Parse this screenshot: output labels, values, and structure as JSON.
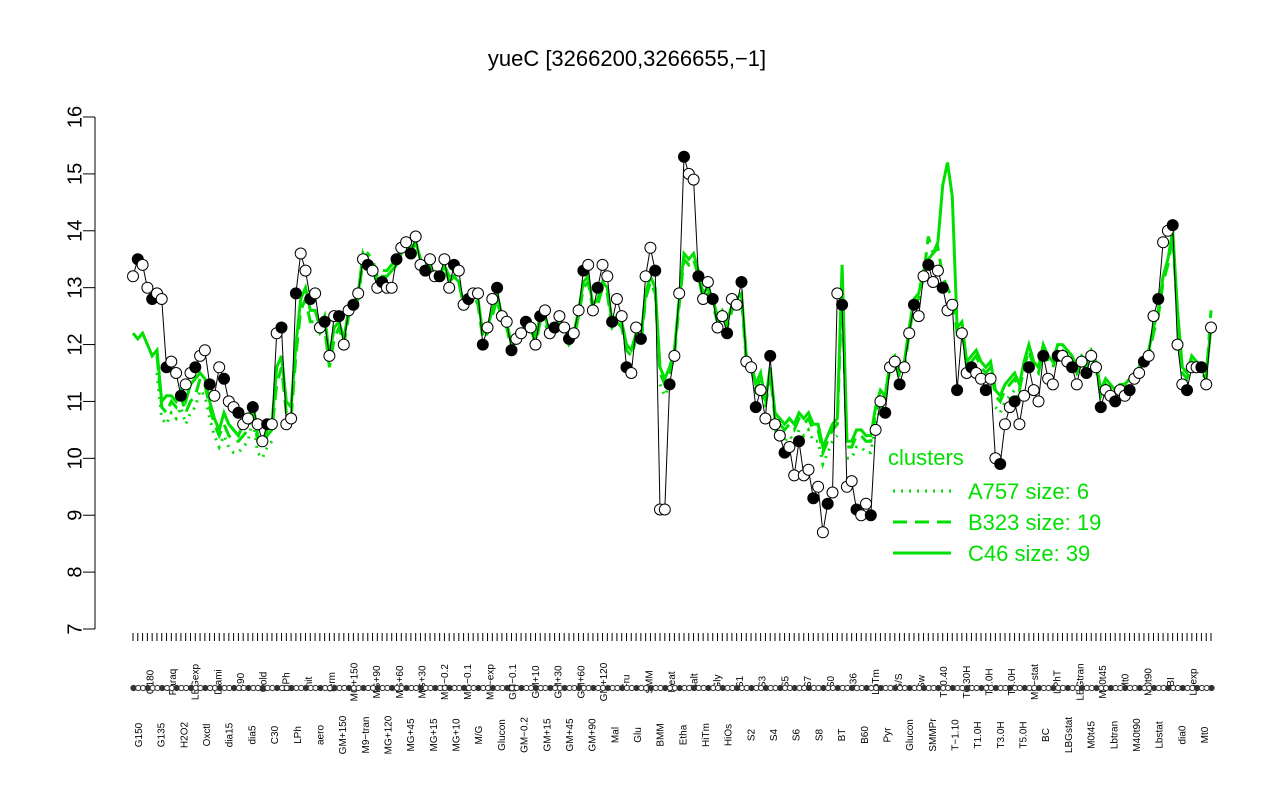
{
  "chart_data": {
    "type": "line",
    "title": "yueC [3266200,3266655,−1]",
    "xlabel": "",
    "ylabel": "",
    "ylim": [
      7,
      16
    ],
    "yticks": [
      7,
      8,
      9,
      10,
      11,
      12,
      13,
      14,
      15,
      16
    ],
    "grid": false,
    "legend_position": "bottom-right",
    "legend_title": "clusters",
    "legend": [
      {
        "label": "A757 size: 6",
        "style": "dotted"
      },
      {
        "label": "B323 size: 19",
        "style": "dashed"
      },
      {
        "label": "C46 size: 39",
        "style": "solid"
      }
    ],
    "xtick_labels": [
      "G150",
      "G180",
      "G135",
      "Paraq",
      "H2O2",
      "LBGexp",
      "Oxctl",
      "Diami",
      "dia15",
      "C90",
      "dia5",
      "Cold",
      "C30",
      "HPh",
      "LPh",
      "nit",
      "aero",
      "ferm",
      "GM+150",
      "MG+150",
      "M9−tran",
      "MG+90",
      "MG+120",
      "MG+60",
      "MG+45",
      "MG+30",
      "MG+15",
      "MG−0.2",
      "MG+10",
      "MG−0.1",
      "M/G",
      "M9−exp",
      "Glucon",
      "GM−0.1",
      "GM−0.2",
      "GM+10",
      "GM+15",
      "GM+30",
      "GM+45",
      "GM+60",
      "GM+90",
      "GM+120",
      "Mal",
      "Fru",
      "Glu",
      "SMM",
      "BMM",
      "Heat",
      "Etha",
      "Salt",
      "HiTm",
      "Gly",
      "HiOs",
      "S1",
      "S2",
      "S3",
      "S4",
      "S5",
      "S6",
      "S7",
      "S8",
      "S0",
      "BT",
      "B36",
      "B60",
      "LoTm",
      "Pyr",
      "G/S",
      "Glucon",
      "Sw",
      "SMMPr",
      "T−0.40",
      "T−1.10",
      "T0.30H",
      "T1.0H",
      "T2.0H",
      "T3.0H",
      "T4.0H",
      "T5.0H",
      "M9−stat",
      "BC",
      "LPhT",
      "LBGstat",
      "LBGtran",
      "M0t45",
      "M40t45",
      "Lbtran",
      "Mt0",
      "M40t90",
      "M0t90",
      "Lbstat",
      "BI",
      "dia0",
      "Lbexp",
      "Mt0"
    ],
    "series": [
      {
        "style": "points",
        "values": [
          13.2,
          13.5,
          13.4,
          13.0,
          12.8,
          12.9,
          12.8,
          11.6,
          11.7,
          11.5,
          11.1,
          11.3,
          11.5,
          11.6,
          11.8,
          11.9,
          11.3,
          11.1,
          11.6,
          11.4,
          11.0,
          10.9,
          10.8,
          10.6,
          10.7,
          10.9,
          10.6,
          10.3,
          10.6,
          10.6,
          12.2,
          12.3,
          10.6,
          10.7,
          12.9,
          13.6,
          13.3,
          12.8,
          12.9,
          12.3,
          12.4,
          11.8,
          12.5,
          12.5,
          12.0,
          12.6,
          12.7,
          12.9,
          13.5,
          13.4,
          13.3,
          13.0,
          13.1,
          13.0,
          13.0,
          13.5,
          13.7,
          13.8,
          13.6,
          13.9,
          13.4,
          13.3,
          13.5,
          13.2,
          13.2,
          13.5,
          13.0,
          13.4,
          13.3,
          12.7,
          12.8,
          12.9,
          12.9,
          12.0,
          12.3,
          12.8,
          13.0,
          12.5,
          12.4,
          11.9,
          12.1,
          12.2,
          12.4,
          12.3,
          12.0,
          12.5,
          12.6,
          12.2,
          12.3,
          12.5,
          12.3,
          12.1,
          12.2,
          12.6,
          13.3,
          13.4,
          12.6,
          13.0,
          13.4,
          13.2,
          12.4,
          12.8,
          12.5,
          11.6,
          11.5,
          12.3,
          12.1,
          13.2,
          13.7,
          13.3,
          9.1,
          9.1,
          11.3,
          11.8,
          12.9,
          15.3,
          15.0,
          14.9,
          13.2,
          12.8,
          13.1,
          12.8,
          12.3,
          12.5,
          12.2,
          12.8,
          12.7,
          13.1,
          11.7,
          11.6,
          10.9,
          11.2,
          10.7,
          11.8,
          10.6,
          10.4,
          10.1,
          10.2,
          9.7,
          10.3,
          9.7,
          9.8,
          9.3,
          9.5,
          8.7,
          9.2,
          9.4,
          12.9,
          12.7,
          9.5,
          9.6,
          9.1,
          9.0,
          9.2,
          9.0,
          10.5,
          11.0,
          10.8,
          11.6,
          11.7,
          11.3,
          11.6,
          12.2,
          12.7,
          12.5,
          13.2,
          13.4,
          13.1,
          13.3,
          13.0,
          12.6,
          12.7,
          11.2,
          12.2,
          11.5,
          11.6,
          11.5,
          11.4,
          11.2,
          11.4,
          10.0,
          9.9,
          10.6,
          10.9,
          11.0,
          10.6,
          11.1,
          11.6,
          11.2,
          11.0,
          11.8,
          11.4,
          11.3,
          11.8,
          11.8,
          11.7,
          11.6,
          11.3,
          11.7,
          11.5,
          11.8,
          11.6,
          10.9,
          11.2,
          11.1,
          11.0,
          11.2,
          11.1,
          11.2,
          11.4,
          11.5,
          11.7,
          11.8,
          12.5,
          12.8,
          13.8,
          14.0,
          14.1,
          12.0,
          11.3,
          11.2,
          11.6,
          11.6,
          11.6,
          11.3,
          12.3
        ]
      },
      {
        "name": "C46 size: 39",
        "style": "solid",
        "values": [
          12.2,
          12.1,
          12.2,
          12.0,
          11.8,
          11.9,
          11.0,
          11.1,
          11.1,
          11.0,
          11.2,
          11.0,
          11.3,
          11.4,
          11.5,
          11.4,
          11.0,
          10.7,
          10.5,
          10.8,
          10.6,
          10.5,
          10.4,
          10.6,
          10.7,
          11.0,
          10.4,
          10.3,
          10.5,
          10.6,
          11.6,
          11.8,
          11.0,
          10.9,
          12.0,
          12.8,
          13.0,
          12.6,
          12.6,
          12.3,
          12.5,
          11.8,
          12.3,
          12.4,
          12.1,
          12.6,
          12.7,
          12.9,
          13.6,
          13.4,
          13.3,
          13.1,
          13.2,
          13.2,
          13.3,
          13.4,
          13.6,
          13.8,
          13.6,
          13.8,
          13.5,
          13.3,
          13.4,
          13.2,
          13.2,
          13.4,
          13.1,
          13.2,
          13.1,
          12.7,
          12.8,
          12.9,
          12.8,
          12.2,
          12.3,
          12.6,
          12.9,
          12.5,
          12.4,
          12.0,
          12.2,
          12.2,
          12.4,
          12.4,
          12.1,
          12.5,
          12.5,
          12.2,
          12.3,
          12.4,
          12.3,
          12.1,
          12.2,
          12.6,
          13.1,
          13.2,
          12.7,
          12.8,
          13.1,
          13.0,
          12.4,
          12.5,
          12.4,
          12.0,
          11.9,
          12.2,
          12.1,
          12.9,
          13.2,
          13.0,
          11.6,
          11.4,
          11.6,
          11.9,
          12.8,
          13.6,
          13.5,
          13.6,
          13.3,
          12.9,
          13.0,
          12.8,
          12.5,
          12.6,
          12.4,
          12.7,
          12.8,
          12.9,
          11.8,
          11.7,
          11.3,
          11.5,
          11.0,
          11.6,
          10.8,
          10.7,
          10.6,
          10.7,
          10.6,
          10.8,
          10.7,
          10.8,
          10.6,
          10.6,
          10.2,
          10.4,
          10.6,
          10.7,
          13.4,
          10.3,
          10.3,
          10.5,
          10.5,
          10.4,
          10.4,
          10.9,
          11.2,
          11.1,
          11.7,
          11.8,
          11.5,
          11.7,
          12.3,
          12.8,
          12.9,
          13.3,
          13.5,
          13.6,
          13.8,
          14.8,
          15.2,
          14.6,
          12.3,
          12.4,
          11.7,
          11.8,
          11.9,
          11.7,
          11.6,
          11.7,
          11.2,
          11.1,
          11.3,
          11.4,
          11.5,
          11.3,
          11.7,
          12.0,
          11.7,
          11.6,
          12.0,
          11.8,
          11.7,
          12.0,
          12.0,
          11.9,
          11.8,
          11.6,
          11.8,
          11.7,
          11.9,
          11.7,
          11.2,
          11.4,
          11.3,
          11.2,
          11.3,
          11.3,
          11.4,
          11.5,
          11.6,
          11.8,
          11.9,
          12.3,
          12.6,
          13.2,
          13.5,
          14.0,
          12.6,
          11.6,
          11.5,
          11.8,
          11.7,
          11.6,
          11.5,
          12.3
        ]
      },
      {
        "name": "B323 size: 19",
        "style": "dashed",
        "values": [
          null,
          null,
          null,
          null,
          null,
          11.8,
          10.9,
          10.8,
          11.0,
          10.9,
          11.1,
          10.8,
          11.0,
          11.1,
          11.4,
          11.3,
          10.9,
          10.6,
          10.4,
          10.6,
          10.4,
          10.3,
          10.3,
          10.4,
          10.5,
          10.9,
          10.3,
          10.2,
          10.4,
          10.5,
          11.3,
          11.6,
          10.8,
          10.7,
          11.8,
          12.6,
          12.8,
          12.4,
          12.4,
          12.2,
          12.3,
          11.6,
          12.1,
          12.3,
          12.0,
          12.5,
          12.6,
          12.8,
          13.5,
          13.6,
          13.5,
          13.2,
          13.3,
          13.3,
          13.4,
          13.5,
          13.7,
          13.8,
          13.7,
          13.8,
          13.5,
          13.3,
          13.5,
          13.3,
          13.2,
          13.4,
          13.2,
          13.2,
          13.1,
          12.7,
          12.8,
          12.9,
          12.7,
          12.1,
          12.2,
          12.5,
          12.8,
          12.4,
          12.3,
          11.9,
          12.1,
          12.1,
          12.3,
          12.3,
          12.0,
          12.4,
          12.4,
          12.1,
          12.2,
          12.3,
          12.2,
          12.0,
          12.1,
          12.5,
          13.0,
          13.1,
          12.6,
          12.7,
          13.0,
          12.9,
          12.3,
          12.4,
          12.3,
          11.9,
          11.8,
          12.1,
          12.0,
          12.8,
          13.1,
          12.9,
          11.5,
          11.3,
          11.5,
          11.8,
          12.7,
          13.5,
          13.4,
          13.5,
          13.2,
          12.8,
          12.9,
          12.7,
          12.4,
          12.5,
          12.3,
          12.6,
          12.7,
          12.8,
          11.7,
          11.6,
          11.2,
          11.4,
          10.9,
          11.5,
          10.7,
          10.6,
          10.5,
          10.6,
          10.5,
          10.7,
          10.6,
          10.7,
          10.5,
          10.5,
          10.1,
          10.3,
          10.5,
          10.6,
          13.0,
          10.2,
          10.2,
          10.4,
          10.4,
          10.3,
          10.3,
          10.8,
          11.1,
          11.0,
          11.6,
          11.7,
          11.4,
          11.6,
          12.2,
          12.7,
          12.8,
          13.2,
          13.9,
          13.6,
          13.7,
          13.2,
          13.0,
          12.8,
          12.2,
          12.3,
          11.6,
          11.7,
          11.8,
          11.6,
          11.5,
          11.6,
          11.1,
          11.0,
          11.2,
          11.3,
          11.4,
          11.2,
          11.6,
          11.9,
          11.6,
          11.5,
          11.9,
          11.7,
          11.6,
          11.9,
          11.9,
          11.8,
          11.7,
          11.5,
          11.7,
          11.6,
          11.8,
          11.6,
          11.1,
          11.3,
          11.2,
          11.1,
          11.2,
          11.2,
          11.3,
          11.4,
          11.5,
          11.7,
          11.8,
          12.2,
          12.5,
          13.1,
          13.4,
          13.9,
          12.5,
          11.5,
          11.4,
          11.7,
          11.6,
          11.5,
          11.4,
          12.6
        ]
      },
      {
        "name": "A757 size: 6",
        "style": "dotted",
        "values": [
          null,
          null,
          null,
          null,
          null,
          11.5,
          10.7,
          10.6,
          10.8,
          10.7,
          10.9,
          10.6,
          10.8,
          10.9,
          11.2,
          11.1,
          10.7,
          10.4,
          10.2,
          10.4,
          10.2,
          10.1,
          10.1,
          10.2,
          10.3,
          10.7,
          10.1,
          10.0,
          10.2,
          10.3,
          null,
          null,
          null,
          null,
          null,
          null,
          null,
          null,
          null,
          null,
          null,
          null,
          null,
          null,
          null,
          null,
          null,
          null,
          null,
          null,
          null,
          null,
          null,
          null,
          null,
          null,
          null,
          null,
          null,
          null,
          null,
          null,
          null,
          null,
          null,
          null,
          null,
          null,
          null,
          null,
          null,
          null,
          null,
          null,
          null,
          null,
          null,
          null,
          null,
          null,
          null,
          null,
          null,
          null,
          null,
          null,
          null,
          null,
          null,
          null,
          null,
          null,
          null,
          null,
          null,
          null,
          null,
          null,
          null,
          null,
          null,
          null,
          null,
          null,
          null,
          null,
          null,
          null,
          null,
          null,
          11.3,
          11.1,
          11.3,
          null,
          null,
          null,
          null,
          null,
          null,
          null,
          null,
          null,
          null,
          null,
          null,
          null,
          null,
          null,
          null,
          null,
          null,
          null,
          null,
          null,
          10.5,
          10.4,
          10.3,
          10.4,
          10.3,
          10.5,
          10.4,
          10.5,
          10.3,
          10.3,
          9.9,
          10.1,
          10.3,
          10.4,
          null,
          10.0,
          10.0,
          10.2,
          10.2,
          10.1,
          10.1,
          10.6,
          10.9,
          10.8,
          null,
          null,
          null,
          null,
          null,
          null,
          null,
          null,
          null,
          null,
          null,
          null,
          null,
          null,
          null,
          null,
          null,
          null,
          null,
          null,
          null,
          null,
          10.9,
          10.8,
          11.0,
          11.1,
          11.2,
          11.0,
          null,
          null,
          null,
          null,
          null,
          null,
          null,
          null,
          null,
          null,
          null,
          null,
          null,
          null,
          null,
          null,
          null,
          null,
          null,
          null,
          null,
          null,
          null,
          null,
          null,
          null,
          null,
          null,
          null,
          null,
          null,
          null,
          null,
          null,
          null,
          null,
          null,
          null,
          null,
          null
        ]
      }
    ]
  },
  "colors": {
    "cluster_line": "#00e000",
    "points_line": "#000000"
  }
}
